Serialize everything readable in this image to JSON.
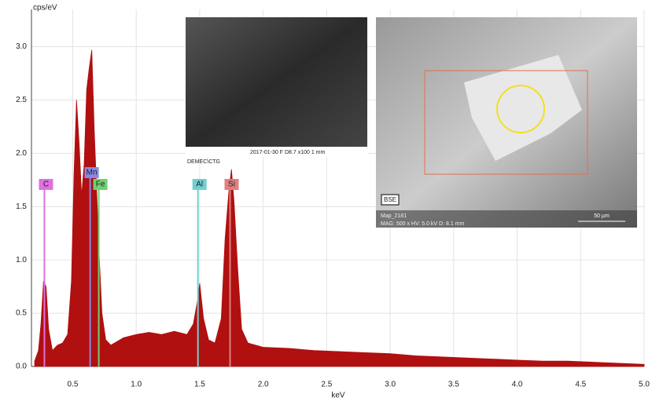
{
  "chart_data": {
    "type": "area",
    "color": "#b01010",
    "grid": true,
    "y_label": "cps/eV",
    "x_label": "keV",
    "xlim": [
      0.175,
      5.0
    ],
    "ylim": [
      0,
      3.35
    ],
    "xticks": [
      0.5,
      {
        "value": 1,
        "label": "1.0"
      },
      1.5,
      {
        "value": 2,
        "label": "2.0"
      },
      2.5,
      {
        "value": 3,
        "label": "3.0"
      },
      3.5,
      {
        "value": 4,
        "label": "4.0"
      },
      4.5,
      {
        "value": 5,
        "label": "5.0"
      }
    ],
    "yticks": [
      {
        "value": 0,
        "label": "0.0"
      },
      0.5,
      {
        "value": 1,
        "label": "1.0"
      },
      1.5,
      {
        "value": 2,
        "label": "2.0"
      },
      2.5,
      {
        "value": 3,
        "label": "3.0"
      }
    ],
    "x": [
      0.2,
      0.23,
      0.25,
      0.27,
      0.29,
      0.31,
      0.34,
      0.38,
      0.42,
      0.46,
      0.49,
      0.51,
      0.53,
      0.55,
      0.57,
      0.59,
      0.61,
      0.63,
      0.65,
      0.67,
      0.69,
      0.71,
      0.73,
      0.76,
      0.8,
      0.9,
      1.0,
      1.1,
      1.2,
      1.3,
      1.4,
      1.45,
      1.48,
      1.5,
      1.53,
      1.57,
      1.62,
      1.67,
      1.7,
      1.73,
      1.75,
      1.77,
      1.8,
      1.83,
      1.88,
      2.0,
      2.2,
      2.4,
      2.6,
      2.8,
      3.0,
      3.2,
      3.4,
      3.6,
      3.8,
      4.0,
      4.2,
      4.4,
      4.6,
      4.8,
      5.0
    ],
    "values": [
      0.05,
      0.15,
      0.4,
      0.8,
      0.75,
      0.35,
      0.15,
      0.2,
      0.22,
      0.3,
      0.8,
      1.8,
      2.5,
      2.1,
      1.6,
      1.9,
      2.6,
      2.8,
      2.97,
      2.2,
      1.6,
      1.0,
      0.5,
      0.25,
      0.2,
      0.27,
      0.3,
      0.32,
      0.3,
      0.33,
      0.3,
      0.4,
      0.6,
      0.78,
      0.45,
      0.25,
      0.22,
      0.45,
      1.2,
      1.65,
      1.85,
      1.55,
      0.9,
      0.35,
      0.22,
      0.18,
      0.17,
      0.15,
      0.14,
      0.13,
      0.12,
      0.1,
      0.09,
      0.08,
      0.07,
      0.06,
      0.05,
      0.05,
      0.04,
      0.03,
      0.02
    ],
    "elements": [
      {
        "label": "C",
        "energy": 0.277,
        "color": "#e070e0"
      },
      {
        "label": "Mn",
        "energy": 0.637,
        "color": "#8888e8"
      },
      {
        "label": "Fe",
        "energy": 0.705,
        "color": "#70d070"
      },
      {
        "label": "Al",
        "energy": 1.486,
        "color": "#70d0d0"
      },
      {
        "label": "Si",
        "energy": 1.739,
        "color": "#e08080"
      }
    ],
    "insets": [
      {
        "caption": "2017-01-30    F    D8.7   x100     1 mm",
        "note": "DEMEC\\CTG"
      },
      {
        "tag": "BSE",
        "caption": "Map_2181",
        "info": "MAG: 500 x  HV: 5.0 kV  D: 8.1 mm",
        "scale": "50 µm"
      }
    ]
  }
}
